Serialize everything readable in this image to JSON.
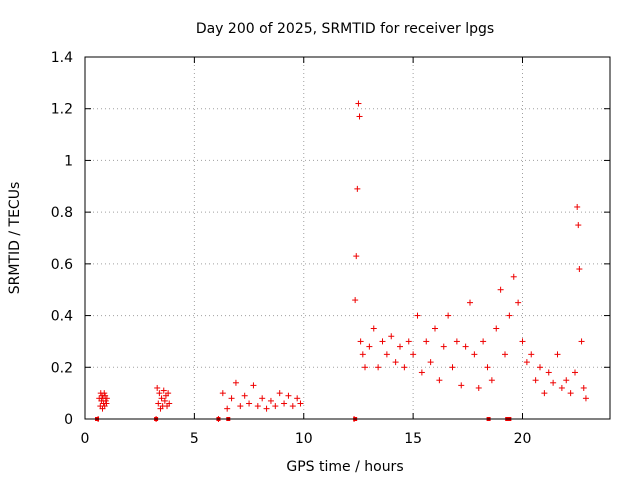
{
  "chart_data": {
    "type": "scatter",
    "title": "Day 200 of 2025, SRMTID for receiver lpgs",
    "xlabel": "GPS time / hours",
    "ylabel": "SRMTID / TECUs",
    "xlim": [
      0,
      24
    ],
    "ylim": [
      0,
      1.4
    ],
    "x_ticks": [
      0,
      5,
      10,
      15,
      20
    ],
    "x_tick_labels": [
      "0",
      "5",
      "10",
      "15",
      "20"
    ],
    "y_ticks": [
      0,
      0.2,
      0.4,
      0.6,
      0.8,
      1.0,
      1.2,
      1.4
    ],
    "y_tick_labels": [
      "0",
      "0.2",
      "0.4",
      "0.6",
      "0.8",
      "1",
      "1.2",
      "1.4"
    ],
    "grid": true,
    "marker": "plus",
    "color": "#ee0000",
    "series": [
      {
        "name": "SRMTID",
        "x": [
          0.6,
          0.65,
          0.7,
          0.72,
          0.75,
          0.78,
          0.8,
          0.82,
          0.85,
          0.88,
          0.9,
          0.92,
          0.95,
          0.98,
          1.0,
          3.25,
          3.3,
          3.35,
          3.4,
          3.45,
          3.5,
          3.55,
          3.6,
          3.65,
          3.7,
          3.75,
          3.8,
          3.85,
          6.1,
          6.3,
          6.5,
          6.7,
          6.9,
          7.1,
          7.3,
          7.5,
          7.7,
          7.9,
          8.1,
          8.3,
          8.5,
          8.7,
          8.9,
          9.1,
          9.3,
          9.5,
          9.7,
          9.85,
          12.3,
          12.35,
          12.4,
          12.45,
          12.5,
          12.55,
          12.6,
          12.7,
          12.8,
          13.0,
          13.2,
          13.4,
          13.6,
          13.8,
          14.0,
          14.2,
          14.4,
          14.6,
          14.8,
          15.0,
          15.2,
          15.4,
          15.6,
          15.8,
          16.0,
          16.2,
          16.4,
          16.6,
          16.8,
          17.0,
          17.2,
          17.4,
          17.6,
          17.8,
          18.0,
          18.2,
          18.4,
          18.6,
          18.8,
          19.0,
          19.2,
          19.4,
          19.6,
          19.8,
          20.0,
          20.2,
          20.4,
          20.6,
          20.8,
          21.0,
          21.2,
          21.4,
          21.6,
          21.8,
          22.0,
          22.2,
          22.4,
          22.5,
          22.55,
          22.6,
          22.7,
          22.8,
          22.9
        ],
        "y": [
          0.0,
          0.08,
          0.05,
          0.1,
          0.07,
          0.09,
          0.04,
          0.08,
          0.06,
          0.1,
          0.05,
          0.09,
          0.07,
          0.06,
          0.08,
          0.0,
          0.12,
          0.06,
          0.1,
          0.04,
          0.08,
          0.05,
          0.11,
          0.07,
          0.09,
          0.05,
          0.1,
          0.06,
          0.0,
          0.1,
          0.04,
          0.08,
          0.14,
          0.05,
          0.09,
          0.06,
          0.13,
          0.05,
          0.08,
          0.04,
          0.07,
          0.05,
          0.1,
          0.06,
          0.09,
          0.05,
          0.08,
          0.06,
          0.0,
          0.46,
          0.63,
          0.89,
          1.22,
          1.17,
          0.3,
          0.25,
          0.2,
          0.28,
          0.35,
          0.2,
          0.3,
          0.25,
          0.32,
          0.22,
          0.28,
          0.2,
          0.3,
          0.25,
          0.4,
          0.18,
          0.3,
          0.22,
          0.35,
          0.15,
          0.28,
          0.4,
          0.2,
          0.3,
          0.13,
          0.28,
          0.45,
          0.25,
          0.12,
          0.3,
          0.2,
          0.15,
          0.35,
          0.5,
          0.25,
          0.4,
          0.55,
          0.45,
          0.3,
          0.22,
          0.25,
          0.15,
          0.2,
          0.1,
          0.18,
          0.14,
          0.25,
          0.12,
          0.15,
          0.1,
          0.18,
          0.82,
          0.75,
          0.58,
          0.3,
          0.12,
          0.08
        ]
      }
    ],
    "baseline_markers_x": [
      0.55,
      3.25,
      6.1,
      6.55,
      12.35,
      18.45,
      19.3,
      19.4
    ]
  }
}
